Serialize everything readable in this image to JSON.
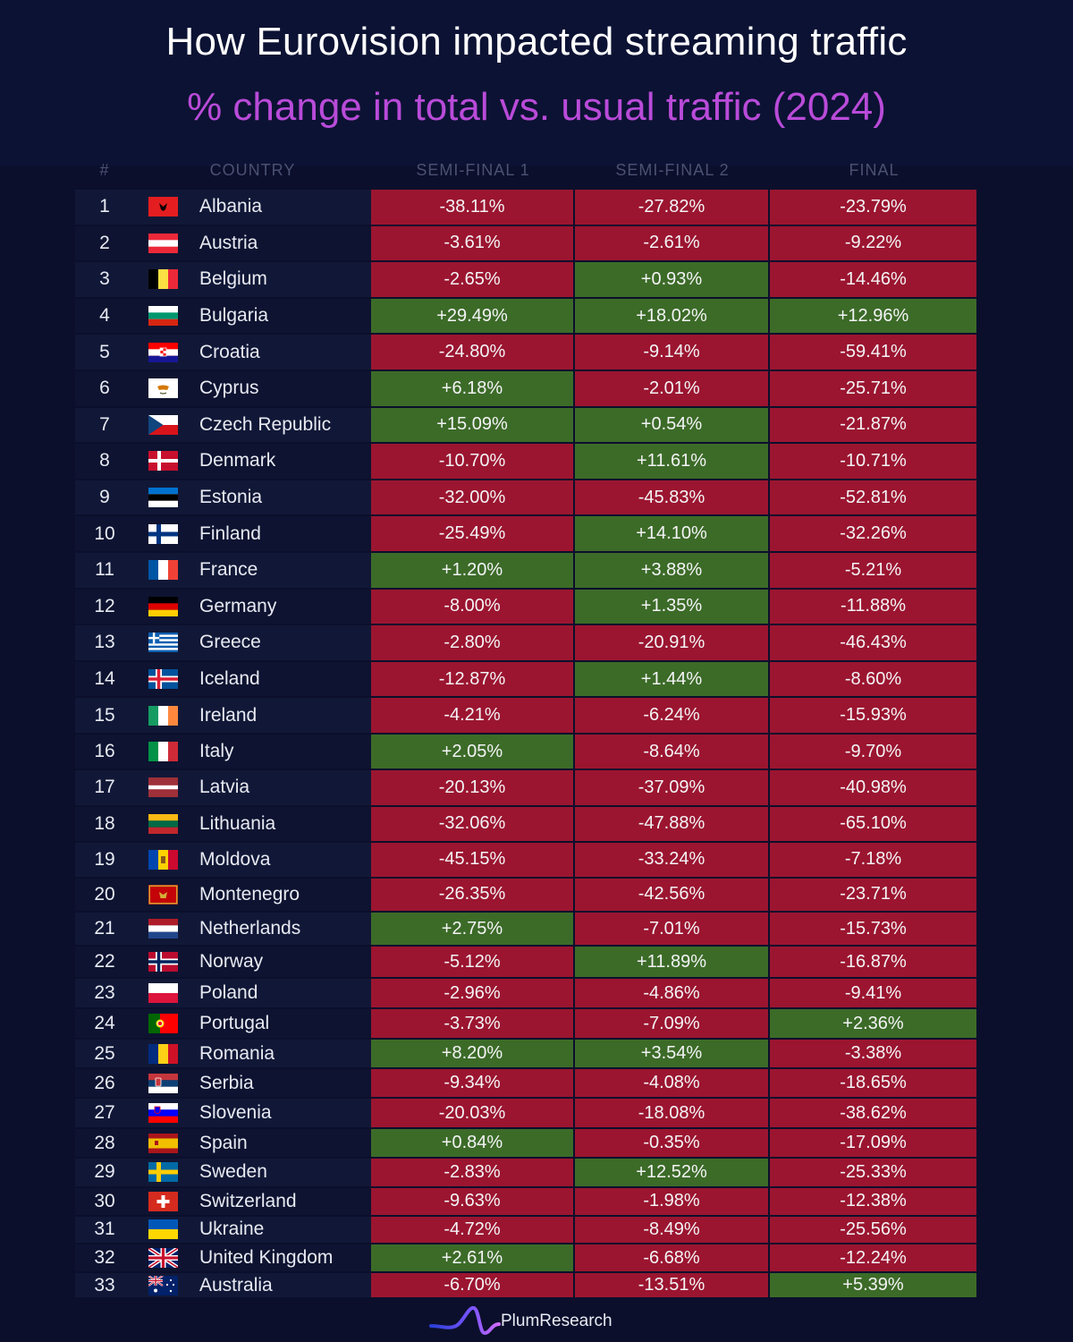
{
  "title": "How Eurovision impacted streaming traffic",
  "subtitle": "% change in total vs. usual traffic (2024)",
  "brand": "PlumResearch",
  "logo_icon": "plum-wave-logo",
  "colors": {
    "negative": "#9b1530",
    "positive": "#3c6b28",
    "subtitle": "#b94bd9",
    "background": "#0b0f2c"
  },
  "chart_data": {
    "type": "table",
    "columns": [
      "#",
      "COUNTRY",
      "SEMI-FINAL 1",
      "SEMI-FINAL 2",
      "FINAL"
    ],
    "rows": [
      {
        "rank": "1",
        "country": "Albania",
        "flag": "albania-flag",
        "sf1": "-38.11%",
        "sf2": "-27.82%",
        "final": "-23.79%"
      },
      {
        "rank": "2",
        "country": "Austria",
        "flag": "austria-flag",
        "sf1": "-3.61%",
        "sf2": "-2.61%",
        "final": "-9.22%"
      },
      {
        "rank": "3",
        "country": "Belgium",
        "flag": "belgium-flag",
        "sf1": "-2.65%",
        "sf2": "+0.93%",
        "final": "-14.46%"
      },
      {
        "rank": "4",
        "country": "Bulgaria",
        "flag": "bulgaria-flag",
        "sf1": "+29.49%",
        "sf2": "+18.02%",
        "final": "+12.96%"
      },
      {
        "rank": "5",
        "country": "Croatia",
        "flag": "croatia-flag",
        "sf1": "-24.80%",
        "sf2": "-9.14%",
        "final": "-59.41%"
      },
      {
        "rank": "6",
        "country": "Cyprus",
        "flag": "cyprus-flag",
        "sf1": "+6.18%",
        "sf2": "-2.01%",
        "final": "-25.71%"
      },
      {
        "rank": "7",
        "country": "Czech Republic",
        "flag": "czech-republic-flag",
        "sf1": "+15.09%",
        "sf2": "+0.54%",
        "final": "-21.87%"
      },
      {
        "rank": "8",
        "country": "Denmark",
        "flag": "denmark-flag",
        "sf1": "-10.70%",
        "sf2": "+11.61%",
        "final": "-10.71%"
      },
      {
        "rank": "9",
        "country": "Estonia",
        "flag": "estonia-flag",
        "sf1": "-32.00%",
        "sf2": "-45.83%",
        "final": "-52.81%"
      },
      {
        "rank": "10",
        "country": "Finland",
        "flag": "finland-flag",
        "sf1": "-25.49%",
        "sf2": "+14.10%",
        "final": "-32.26%"
      },
      {
        "rank": "11",
        "country": "France",
        "flag": "france-flag",
        "sf1": "+1.20%",
        "sf2": "+3.88%",
        "final": "-5.21%"
      },
      {
        "rank": "12",
        "country": "Germany",
        "flag": "germany-flag",
        "sf1": "-8.00%",
        "sf2": "+1.35%",
        "final": "-11.88%"
      },
      {
        "rank": "13",
        "country": "Greece",
        "flag": "greece-flag",
        "sf1": "-2.80%",
        "sf2": "-20.91%",
        "final": "-46.43%"
      },
      {
        "rank": "14",
        "country": "Iceland",
        "flag": "iceland-flag",
        "sf1": "-12.87%",
        "sf2": "+1.44%",
        "final": "-8.60%"
      },
      {
        "rank": "15",
        "country": "Ireland",
        "flag": "ireland-flag",
        "sf1": "-4.21%",
        "sf2": "-6.24%",
        "final": "-15.93%"
      },
      {
        "rank": "16",
        "country": "Italy",
        "flag": "italy-flag",
        "sf1": "+2.05%",
        "sf2": "-8.64%",
        "final": "-9.70%"
      },
      {
        "rank": "17",
        "country": "Latvia",
        "flag": "latvia-flag",
        "sf1": "-20.13%",
        "sf2": "-37.09%",
        "final": "-40.98%"
      },
      {
        "rank": "18",
        "country": "Lithuania",
        "flag": "lithuania-flag",
        "sf1": "-32.06%",
        "sf2": "-47.88%",
        "final": "-65.10%"
      },
      {
        "rank": "19",
        "country": "Moldova",
        "flag": "moldova-flag",
        "sf1": "-45.15%",
        "sf2": "-33.24%",
        "final": "-7.18%"
      },
      {
        "rank": "20",
        "country": "Montenegro",
        "flag": "montenegro-flag",
        "sf1": "-26.35%",
        "sf2": "-42.56%",
        "final": "-23.71%"
      },
      {
        "rank": "21",
        "country": "Netherlands",
        "flag": "netherlands-flag",
        "sf1": "+2.75%",
        "sf2": "-7.01%",
        "final": "-15.73%"
      },
      {
        "rank": "22",
        "country": "Norway",
        "flag": "norway-flag",
        "sf1": "-5.12%",
        "sf2": "+11.89%",
        "final": "-16.87%"
      },
      {
        "rank": "23",
        "country": "Poland",
        "flag": "poland-flag",
        "sf1": "-2.96%",
        "sf2": "-4.86%",
        "final": "-9.41%"
      },
      {
        "rank": "24",
        "country": "Portugal",
        "flag": "portugal-flag",
        "sf1": "-3.73%",
        "sf2": "-7.09%",
        "final": "+2.36%"
      },
      {
        "rank": "25",
        "country": "Romania",
        "flag": "romania-flag",
        "sf1": "+8.20%",
        "sf2": "+3.54%",
        "final": "-3.38%"
      },
      {
        "rank": "26",
        "country": "Serbia",
        "flag": "serbia-flag",
        "sf1": "-9.34%",
        "sf2": "-4.08%",
        "final": "-18.65%"
      },
      {
        "rank": "27",
        "country": "Slovenia",
        "flag": "slovenia-flag",
        "sf1": "-20.03%",
        "sf2": "-18.08%",
        "final": "-38.62%"
      },
      {
        "rank": "28",
        "country": "Spain",
        "flag": "spain-flag",
        "sf1": "+0.84%",
        "sf2": "-0.35%",
        "final": "-17.09%"
      },
      {
        "rank": "29",
        "country": "Sweden",
        "flag": "sweden-flag",
        "sf1": "-2.83%",
        "sf2": "+12.52%",
        "final": "-25.33%"
      },
      {
        "rank": "30",
        "country": "Switzerland",
        "flag": "switzerland-flag",
        "sf1": "-9.63%",
        "sf2": "-1.98%",
        "final": "-12.38%"
      },
      {
        "rank": "31",
        "country": "Ukraine",
        "flag": "ukraine-flag",
        "sf1": "-4.72%",
        "sf2": "-8.49%",
        "final": "-25.56%"
      },
      {
        "rank": "32",
        "country": "United Kingdom",
        "flag": "united-kingdom-flag",
        "sf1": "+2.61%",
        "sf2": "-6.68%",
        "final": "-12.24%"
      },
      {
        "rank": "33",
        "country": "Australia",
        "flag": "australia-flag",
        "sf1": "-6.70%",
        "sf2": "-13.51%",
        "final": "+5.39%"
      }
    ]
  }
}
